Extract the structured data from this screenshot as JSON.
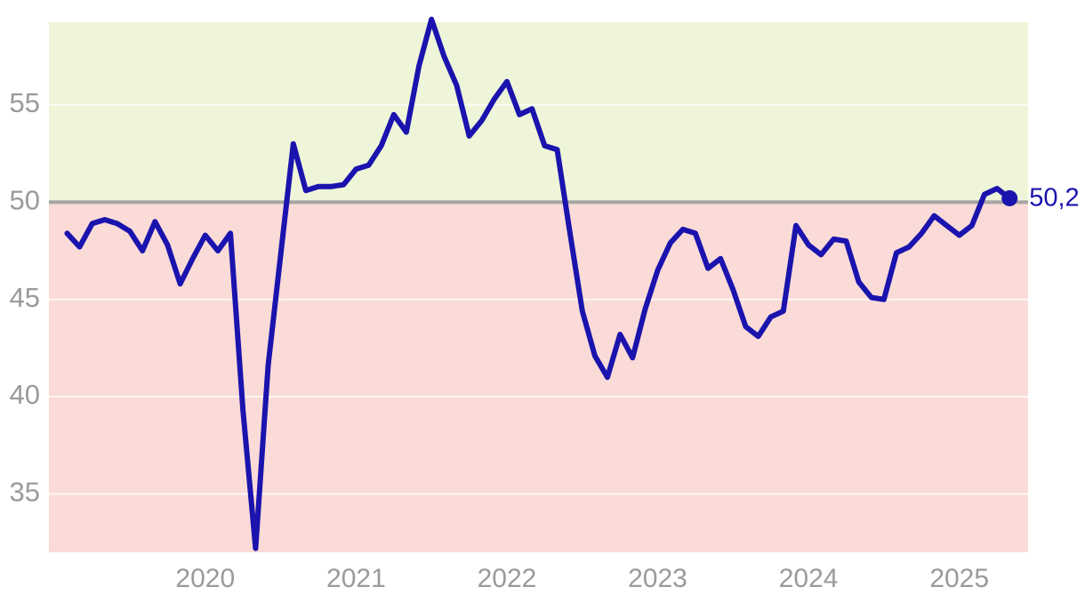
{
  "chart_data": {
    "type": "line",
    "title": "",
    "xlabel": "",
    "ylabel": "",
    "grid": true,
    "legend": null,
    "ylim": [
      32.0,
      59.25
    ],
    "xlim_years": [
      2018.963,
      2025.456
    ],
    "yticks": [
      55,
      50,
      45,
      40,
      35
    ],
    "xticks": [
      "2020",
      "2021",
      "2022",
      "2023",
      "2024",
      "2025"
    ],
    "reference_line": 50,
    "bands": {
      "above_reference_color": "#eef5d8",
      "below_reference_color": "#fbdbd7"
    },
    "points": [
      [
        "2019-02",
        48.4
      ],
      [
        "2019-03",
        47.7
      ],
      [
        "2019-04",
        48.9
      ],
      [
        "2019-05",
        49.1
      ],
      [
        "2019-06",
        48.9
      ],
      [
        "2019-07",
        48.5
      ],
      [
        "2019-08",
        47.5
      ],
      [
        "2019-09",
        49.0
      ],
      [
        "2019-10",
        47.8
      ],
      [
        "2019-11",
        45.8
      ],
      [
        "2019-12",
        47.1
      ],
      [
        "2020-01",
        48.3
      ],
      [
        "2020-02",
        47.5
      ],
      [
        "2020-03",
        48.4
      ],
      [
        "2020-04",
        39.3
      ],
      [
        "2020-05",
        32.2
      ],
      [
        "2020-06",
        41.6
      ],
      [
        "2020-07",
        47.3
      ],
      [
        "2020-08",
        53.0
      ],
      [
        "2020-09",
        50.6
      ],
      [
        "2020-10",
        50.8
      ],
      [
        "2020-11",
        50.8
      ],
      [
        "2020-12",
        50.9
      ],
      [
        "2021-01",
        51.7
      ],
      [
        "2021-02",
        51.9
      ],
      [
        "2021-03",
        52.9
      ],
      [
        "2021-04",
        54.5
      ],
      [
        "2021-05",
        53.6
      ],
      [
        "2021-06",
        57.0
      ],
      [
        "2021-07",
        59.4
      ],
      [
        "2021-08",
        57.5
      ],
      [
        "2021-09",
        56.0
      ],
      [
        "2021-10",
        53.4
      ],
      [
        "2021-11",
        54.2
      ],
      [
        "2021-12",
        55.3
      ],
      [
        "2022-01",
        56.2
      ],
      [
        "2022-02",
        54.5
      ],
      [
        "2022-03",
        54.8
      ],
      [
        "2022-04",
        52.9
      ],
      [
        "2022-05",
        52.7
      ],
      [
        "2022-06",
        48.5
      ],
      [
        "2022-07",
        44.4
      ],
      [
        "2022-08",
        42.1
      ],
      [
        "2022-09",
        41.0
      ],
      [
        "2022-10",
        43.2
      ],
      [
        "2022-11",
        42.0
      ],
      [
        "2022-12",
        44.5
      ],
      [
        "2023-01",
        46.5
      ],
      [
        "2023-02",
        47.9
      ],
      [
        "2023-03",
        48.6
      ],
      [
        "2023-04",
        48.4
      ],
      [
        "2023-05",
        46.6
      ],
      [
        "2023-06",
        47.1
      ],
      [
        "2023-07",
        45.5
      ],
      [
        "2023-08",
        43.6
      ],
      [
        "2023-09",
        43.1
      ],
      [
        "2023-10",
        44.1
      ],
      [
        "2023-11",
        44.4
      ],
      [
        "2023-12",
        48.8
      ],
      [
        "2024-01",
        47.8
      ],
      [
        "2024-02",
        47.3
      ],
      [
        "2024-03",
        48.1
      ],
      [
        "2024-04",
        48.0
      ],
      [
        "2024-05",
        45.9
      ],
      [
        "2024-06",
        45.1
      ],
      [
        "2024-07",
        45.0
      ],
      [
        "2024-08",
        47.4
      ],
      [
        "2024-09",
        47.7
      ],
      [
        "2024-10",
        48.4
      ],
      [
        "2024-11",
        49.3
      ],
      [
        "2024-12",
        48.8
      ],
      [
        "2025-01",
        48.3
      ],
      [
        "2025-02",
        48.8
      ],
      [
        "2025-03",
        50.4
      ],
      [
        "2025-04",
        50.7
      ],
      [
        "2025-05",
        50.2
      ]
    ],
    "last_point": {
      "date": "2025-05",
      "value": 50.2,
      "label": "50,2"
    }
  },
  "colors": {
    "line": "#1a13ad",
    "end_dot": "#1a13ad",
    "end_label": "#1a13ad",
    "band_above": "#eef5d8",
    "band_below": "#fbdbd7",
    "reference_line": "#a5a5a5",
    "gridline": "#ffffff",
    "axis_text": "#9a9a9a",
    "background": "#ffffff"
  }
}
